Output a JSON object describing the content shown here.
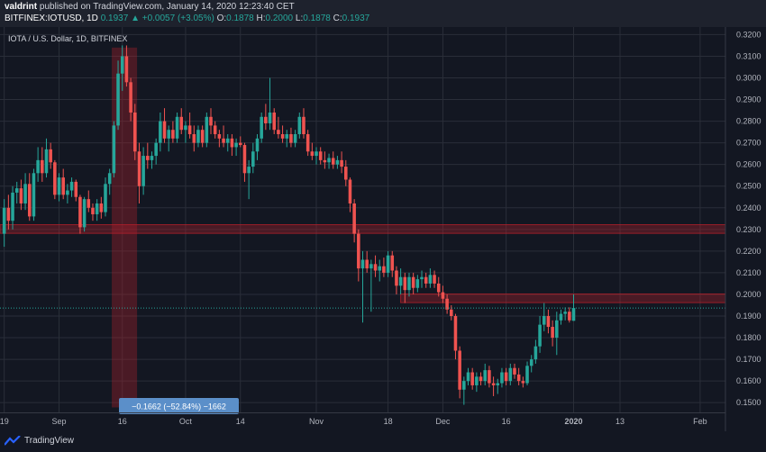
{
  "header": {
    "user": "valdrint",
    "published_text": "published on TradingView.com, January 14, 2020 12:23:40 CET",
    "symbol": "BITFINEX:IOTUSD, 1D",
    "last": "0.1937",
    "change": "▲ +0.0057 (+3.05%)",
    "o_label": "O:",
    "o_value": "0.1878",
    "h_label": "H:",
    "h_value": "0.2000",
    "l_label": "L:",
    "l_value": "0.1878",
    "c_label": "C:",
    "c_value": "0.1937"
  },
  "pane_title": "IOTA / U.S. Dollar, 1D, BITFINEX",
  "footer": {
    "brand": "TradingView"
  },
  "colors": {
    "up": "#26a69a",
    "down": "#ef5350",
    "zone": "#b2202a",
    "price_tag": "#26a69a",
    "measure": "#5b8fc9"
  },
  "chart_data": {
    "type": "candlestick",
    "title": "IOTA / U.S. Dollar, 1D, BITFINEX",
    "y_ticks": [
      "0.3200",
      "0.3100",
      "0.3000",
      "0.2900",
      "0.2800",
      "0.2700",
      "0.2600",
      "0.2500",
      "0.2400",
      "0.2300",
      "0.2200",
      "0.2100",
      "0.2000",
      "0.1900",
      "0.1800",
      "0.1700",
      "0.1600",
      "0.1500"
    ],
    "ylim": [
      0.1455,
      0.3235
    ],
    "x_ticks": [
      "19",
      "Sep",
      "16",
      "Oct",
      "14",
      "Nov",
      "18",
      "Dec",
      "16",
      "2020",
      "13",
      "Feb"
    ],
    "x_tick_days": [
      0,
      13,
      28,
      43,
      56,
      74,
      91,
      104,
      119,
      135,
      146,
      165
    ],
    "xlim": [
      -1,
      171
    ],
    "current_price": "0.1937",
    "resistance_zones": [
      [
        0.2282,
        0.2322
      ],
      [
        0.1962,
        0.2002
      ]
    ],
    "measure_range": {
      "start_day": 26,
      "end_day": 31,
      "top": 0.314,
      "bottom": 0.1478,
      "label": "−0.1662 (−52.84%) −1662"
    },
    "candles": [
      {
        "o": 0.228,
        "h": 0.244,
        "l": 0.222,
        "c": 0.24
      },
      {
        "o": 0.24,
        "h": 0.246,
        "l": 0.23,
        "c": 0.234
      },
      {
        "o": 0.234,
        "h": 0.25,
        "l": 0.23,
        "c": 0.247
      },
      {
        "o": 0.247,
        "h": 0.252,
        "l": 0.242,
        "c": 0.249
      },
      {
        "o": 0.249,
        "h": 0.253,
        "l": 0.239,
        "c": 0.242
      },
      {
        "o": 0.242,
        "h": 0.256,
        "l": 0.239,
        "c": 0.251
      },
      {
        "o": 0.251,
        "h": 0.256,
        "l": 0.234,
        "c": 0.236
      },
      {
        "o": 0.236,
        "h": 0.258,
        "l": 0.234,
        "c": 0.256
      },
      {
        "o": 0.256,
        "h": 0.268,
        "l": 0.252,
        "c": 0.262
      },
      {
        "o": 0.262,
        "h": 0.268,
        "l": 0.252,
        "c": 0.256
      },
      {
        "o": 0.256,
        "h": 0.272,
        "l": 0.254,
        "c": 0.267
      },
      {
        "o": 0.267,
        "h": 0.27,
        "l": 0.258,
        "c": 0.261
      },
      {
        "o": 0.261,
        "h": 0.262,
        "l": 0.244,
        "c": 0.246
      },
      {
        "o": 0.246,
        "h": 0.256,
        "l": 0.243,
        "c": 0.254
      },
      {
        "o": 0.254,
        "h": 0.258,
        "l": 0.244,
        "c": 0.246
      },
      {
        "o": 0.246,
        "h": 0.251,
        "l": 0.242,
        "c": 0.248
      },
      {
        "o": 0.248,
        "h": 0.254,
        "l": 0.245,
        "c": 0.252
      },
      {
        "o": 0.252,
        "h": 0.253,
        "l": 0.243,
        "c": 0.245
      },
      {
        "o": 0.245,
        "h": 0.246,
        "l": 0.228,
        "c": 0.231
      },
      {
        "o": 0.231,
        "h": 0.245,
        "l": 0.229,
        "c": 0.244
      },
      {
        "o": 0.244,
        "h": 0.248,
        "l": 0.238,
        "c": 0.24
      },
      {
        "o": 0.24,
        "h": 0.242,
        "l": 0.234,
        "c": 0.237
      },
      {
        "o": 0.237,
        "h": 0.244,
        "l": 0.234,
        "c": 0.242
      },
      {
        "o": 0.242,
        "h": 0.245,
        "l": 0.235,
        "c": 0.238
      },
      {
        "o": 0.238,
        "h": 0.254,
        "l": 0.236,
        "c": 0.251
      },
      {
        "o": 0.251,
        "h": 0.258,
        "l": 0.246,
        "c": 0.256
      },
      {
        "o": 0.256,
        "h": 0.28,
        "l": 0.254,
        "c": 0.278
      },
      {
        "o": 0.278,
        "h": 0.308,
        "l": 0.276,
        "c": 0.302
      },
      {
        "o": 0.302,
        "h": 0.315,
        "l": 0.294,
        "c": 0.31
      },
      {
        "o": 0.31,
        "h": 0.315,
        "l": 0.296,
        "c": 0.298
      },
      {
        "o": 0.298,
        "h": 0.3,
        "l": 0.28,
        "c": 0.284
      },
      {
        "o": 0.284,
        "h": 0.288,
        "l": 0.262,
        "c": 0.266
      },
      {
        "o": 0.266,
        "h": 0.27,
        "l": 0.242,
        "c": 0.25
      },
      {
        "o": 0.25,
        "h": 0.268,
        "l": 0.246,
        "c": 0.264
      },
      {
        "o": 0.264,
        "h": 0.27,
        "l": 0.258,
        "c": 0.262
      },
      {
        "o": 0.262,
        "h": 0.266,
        "l": 0.258,
        "c": 0.264
      },
      {
        "o": 0.264,
        "h": 0.272,
        "l": 0.26,
        "c": 0.27
      },
      {
        "o": 0.27,
        "h": 0.284,
        "l": 0.266,
        "c": 0.28
      },
      {
        "o": 0.28,
        "h": 0.286,
        "l": 0.27,
        "c": 0.272
      },
      {
        "o": 0.272,
        "h": 0.278,
        "l": 0.266,
        "c": 0.276
      },
      {
        "o": 0.276,
        "h": 0.28,
        "l": 0.27,
        "c": 0.272
      },
      {
        "o": 0.272,
        "h": 0.284,
        "l": 0.27,
        "c": 0.282
      },
      {
        "o": 0.282,
        "h": 0.286,
        "l": 0.274,
        "c": 0.276
      },
      {
        "o": 0.276,
        "h": 0.28,
        "l": 0.27,
        "c": 0.278
      },
      {
        "o": 0.278,
        "h": 0.284,
        "l": 0.272,
        "c": 0.274
      },
      {
        "o": 0.274,
        "h": 0.278,
        "l": 0.266,
        "c": 0.27
      },
      {
        "o": 0.27,
        "h": 0.278,
        "l": 0.268,
        "c": 0.276
      },
      {
        "o": 0.276,
        "h": 0.278,
        "l": 0.268,
        "c": 0.27
      },
      {
        "o": 0.27,
        "h": 0.284,
        "l": 0.268,
        "c": 0.282
      },
      {
        "o": 0.282,
        "h": 0.286,
        "l": 0.274,
        "c": 0.278
      },
      {
        "o": 0.278,
        "h": 0.28,
        "l": 0.272,
        "c": 0.274
      },
      {
        "o": 0.274,
        "h": 0.276,
        "l": 0.268,
        "c": 0.272
      },
      {
        "o": 0.272,
        "h": 0.278,
        "l": 0.268,
        "c": 0.27
      },
      {
        "o": 0.27,
        "h": 0.274,
        "l": 0.266,
        "c": 0.272
      },
      {
        "o": 0.272,
        "h": 0.274,
        "l": 0.264,
        "c": 0.268
      },
      {
        "o": 0.268,
        "h": 0.272,
        "l": 0.264,
        "c": 0.27
      },
      {
        "o": 0.27,
        "h": 0.273,
        "l": 0.268,
        "c": 0.269
      },
      {
        "o": 0.269,
        "h": 0.27,
        "l": 0.252,
        "c": 0.256
      },
      {
        "o": 0.256,
        "h": 0.262,
        "l": 0.244,
        "c": 0.259
      },
      {
        "o": 0.259,
        "h": 0.27,
        "l": 0.256,
        "c": 0.266
      },
      {
        "o": 0.266,
        "h": 0.274,
        "l": 0.262,
        "c": 0.272
      },
      {
        "o": 0.272,
        "h": 0.284,
        "l": 0.27,
        "c": 0.282
      },
      {
        "o": 0.282,
        "h": 0.288,
        "l": 0.276,
        "c": 0.279
      },
      {
        "o": 0.279,
        "h": 0.3,
        "l": 0.276,
        "c": 0.284
      },
      {
        "o": 0.284,
        "h": 0.286,
        "l": 0.274,
        "c": 0.276
      },
      {
        "o": 0.276,
        "h": 0.282,
        "l": 0.272,
        "c": 0.274
      },
      {
        "o": 0.274,
        "h": 0.278,
        "l": 0.27,
        "c": 0.272
      },
      {
        "o": 0.272,
        "h": 0.276,
        "l": 0.268,
        "c": 0.274
      },
      {
        "o": 0.274,
        "h": 0.277,
        "l": 0.268,
        "c": 0.27
      },
      {
        "o": 0.27,
        "h": 0.276,
        "l": 0.268,
        "c": 0.274
      },
      {
        "o": 0.274,
        "h": 0.284,
        "l": 0.272,
        "c": 0.282
      },
      {
        "o": 0.282,
        "h": 0.286,
        "l": 0.272,
        "c": 0.274
      },
      {
        "o": 0.274,
        "h": 0.276,
        "l": 0.264,
        "c": 0.266
      },
      {
        "o": 0.266,
        "h": 0.27,
        "l": 0.262,
        "c": 0.264
      },
      {
        "o": 0.264,
        "h": 0.268,
        "l": 0.26,
        "c": 0.266
      },
      {
        "o": 0.266,
        "h": 0.268,
        "l": 0.26,
        "c": 0.262
      },
      {
        "o": 0.262,
        "h": 0.266,
        "l": 0.258,
        "c": 0.261
      },
      {
        "o": 0.261,
        "h": 0.265,
        "l": 0.258,
        "c": 0.263
      },
      {
        "o": 0.263,
        "h": 0.266,
        "l": 0.258,
        "c": 0.26
      },
      {
        "o": 0.26,
        "h": 0.264,
        "l": 0.258,
        "c": 0.262
      },
      {
        "o": 0.262,
        "h": 0.266,
        "l": 0.256,
        "c": 0.259
      },
      {
        "o": 0.259,
        "h": 0.262,
        "l": 0.25,
        "c": 0.253
      },
      {
        "o": 0.253,
        "h": 0.254,
        "l": 0.238,
        "c": 0.242
      },
      {
        "o": 0.242,
        "h": 0.244,
        "l": 0.224,
        "c": 0.228
      },
      {
        "o": 0.228,
        "h": 0.23,
        "l": 0.206,
        "c": 0.212
      },
      {
        "o": 0.212,
        "h": 0.22,
        "l": 0.187,
        "c": 0.216
      },
      {
        "o": 0.216,
        "h": 0.22,
        "l": 0.21,
        "c": 0.212
      },
      {
        "o": 0.212,
        "h": 0.216,
        "l": 0.192,
        "c": 0.214
      },
      {
        "o": 0.214,
        "h": 0.218,
        "l": 0.208,
        "c": 0.211
      },
      {
        "o": 0.211,
        "h": 0.216,
        "l": 0.206,
        "c": 0.213
      },
      {
        "o": 0.213,
        "h": 0.217,
        "l": 0.208,
        "c": 0.21
      },
      {
        "o": 0.21,
        "h": 0.22,
        "l": 0.208,
        "c": 0.218
      },
      {
        "o": 0.218,
        "h": 0.22,
        "l": 0.208,
        "c": 0.211
      },
      {
        "o": 0.211,
        "h": 0.213,
        "l": 0.2,
        "c": 0.204
      },
      {
        "o": 0.204,
        "h": 0.212,
        "l": 0.2,
        "c": 0.208
      },
      {
        "o": 0.208,
        "h": 0.21,
        "l": 0.196,
        "c": 0.202
      },
      {
        "o": 0.202,
        "h": 0.21,
        "l": 0.199,
        "c": 0.208
      },
      {
        "o": 0.208,
        "h": 0.21,
        "l": 0.2,
        "c": 0.203
      },
      {
        "o": 0.203,
        "h": 0.209,
        "l": 0.201,
        "c": 0.207
      },
      {
        "o": 0.207,
        "h": 0.211,
        "l": 0.203,
        "c": 0.208
      },
      {
        "o": 0.208,
        "h": 0.21,
        "l": 0.203,
        "c": 0.205
      },
      {
        "o": 0.205,
        "h": 0.212,
        "l": 0.203,
        "c": 0.209
      },
      {
        "o": 0.209,
        "h": 0.211,
        "l": 0.203,
        "c": 0.205
      },
      {
        "o": 0.205,
        "h": 0.208,
        "l": 0.199,
        "c": 0.201
      },
      {
        "o": 0.201,
        "h": 0.204,
        "l": 0.196,
        "c": 0.198
      },
      {
        "o": 0.198,
        "h": 0.2,
        "l": 0.191,
        "c": 0.193
      },
      {
        "o": 0.193,
        "h": 0.195,
        "l": 0.188,
        "c": 0.19
      },
      {
        "o": 0.19,
        "h": 0.191,
        "l": 0.17,
        "c": 0.174
      },
      {
        "o": 0.174,
        "h": 0.176,
        "l": 0.152,
        "c": 0.156
      },
      {
        "o": 0.156,
        "h": 0.162,
        "l": 0.149,
        "c": 0.16
      },
      {
        "o": 0.16,
        "h": 0.166,
        "l": 0.158,
        "c": 0.164
      },
      {
        "o": 0.164,
        "h": 0.166,
        "l": 0.156,
        "c": 0.158
      },
      {
        "o": 0.158,
        "h": 0.164,
        "l": 0.155,
        "c": 0.162
      },
      {
        "o": 0.162,
        "h": 0.164,
        "l": 0.158,
        "c": 0.16
      },
      {
        "o": 0.16,
        "h": 0.168,
        "l": 0.158,
        "c": 0.165
      },
      {
        "o": 0.165,
        "h": 0.167,
        "l": 0.157,
        "c": 0.159
      },
      {
        "o": 0.159,
        "h": 0.162,
        "l": 0.153,
        "c": 0.158
      },
      {
        "o": 0.158,
        "h": 0.161,
        "l": 0.154,
        "c": 0.159
      },
      {
        "o": 0.159,
        "h": 0.166,
        "l": 0.157,
        "c": 0.164
      },
      {
        "o": 0.164,
        "h": 0.166,
        "l": 0.158,
        "c": 0.16
      },
      {
        "o": 0.16,
        "h": 0.168,
        "l": 0.158,
        "c": 0.166
      },
      {
        "o": 0.166,
        "h": 0.168,
        "l": 0.161,
        "c": 0.163
      },
      {
        "o": 0.163,
        "h": 0.166,
        "l": 0.158,
        "c": 0.16
      },
      {
        "o": 0.16,
        "h": 0.162,
        "l": 0.157,
        "c": 0.159
      },
      {
        "o": 0.159,
        "h": 0.169,
        "l": 0.158,
        "c": 0.167
      },
      {
        "o": 0.167,
        "h": 0.172,
        "l": 0.164,
        "c": 0.17
      },
      {
        "o": 0.17,
        "h": 0.179,
        "l": 0.168,
        "c": 0.176
      },
      {
        "o": 0.176,
        "h": 0.19,
        "l": 0.173,
        "c": 0.186
      },
      {
        "o": 0.186,
        "h": 0.196,
        "l": 0.183,
        "c": 0.19
      },
      {
        "o": 0.19,
        "h": 0.193,
        "l": 0.182,
        "c": 0.185
      },
      {
        "o": 0.185,
        "h": 0.188,
        "l": 0.176,
        "c": 0.18
      },
      {
        "o": 0.18,
        "h": 0.192,
        "l": 0.172,
        "c": 0.188
      },
      {
        "o": 0.188,
        "h": 0.193,
        "l": 0.186,
        "c": 0.191
      },
      {
        "o": 0.191,
        "h": 0.194,
        "l": 0.188,
        "c": 0.192
      },
      {
        "o": 0.192,
        "h": 0.194,
        "l": 0.187,
        "c": 0.188
      },
      {
        "o": 0.1878,
        "h": 0.2,
        "l": 0.1878,
        "c": 0.1937
      }
    ]
  }
}
